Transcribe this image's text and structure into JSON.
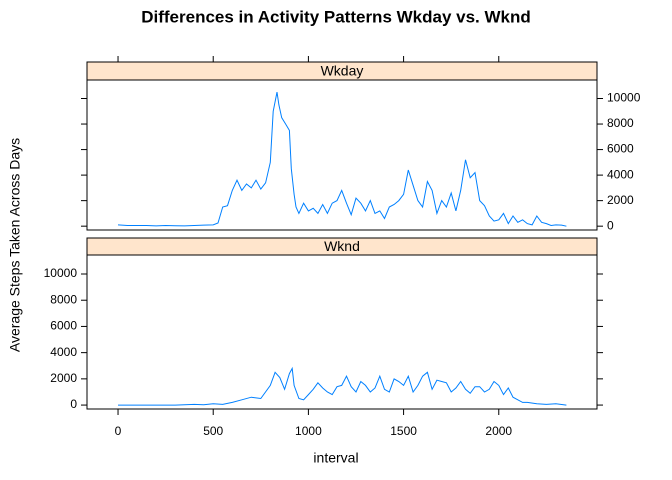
{
  "chart_data": {
    "type": "line",
    "title": "Differences in Activity Patterns Wkday vs. Wknd",
    "x_label": "interval",
    "y_label": "Average Steps Taken Across Days",
    "xlim": [
      -163,
      2516
    ],
    "ylim": [
      -300,
      11450
    ],
    "xticks": [
      0,
      500,
      1000,
      1500,
      2000
    ],
    "yticks": [
      0,
      2000,
      4000,
      6000,
      8000,
      10000
    ],
    "color": "#0080ff",
    "strip_color": "#ffe5cc",
    "panels": [
      {
        "name": "Wkday",
        "x": [
          0,
          50,
          100,
          150,
          200,
          250,
          300,
          350,
          400,
          450,
          500,
          525,
          550,
          575,
          600,
          625,
          650,
          675,
          700,
          725,
          750,
          775,
          800,
          815,
          835,
          845,
          860,
          880,
          900,
          910,
          925,
          935,
          950,
          975,
          1000,
          1025,
          1050,
          1075,
          1100,
          1125,
          1150,
          1175,
          1200,
          1225,
          1250,
          1275,
          1300,
          1325,
          1350,
          1375,
          1400,
          1425,
          1450,
          1475,
          1500,
          1525,
          1550,
          1575,
          1600,
          1625,
          1650,
          1675,
          1700,
          1725,
          1750,
          1775,
          1800,
          1825,
          1850,
          1875,
          1900,
          1925,
          1950,
          1975,
          2000,
          2025,
          2050,
          2075,
          2100,
          2125,
          2150,
          2175,
          2200,
          2225,
          2250,
          2275,
          2300,
          2330,
          2355
        ],
        "values": [
          100,
          50,
          50,
          50,
          20,
          50,
          30,
          20,
          50,
          80,
          100,
          250,
          1500,
          1600,
          2800,
          3600,
          2800,
          3300,
          3000,
          3600,
          2900,
          3400,
          5000,
          9000,
          10500,
          9500,
          8500,
          8000,
          7500,
          4500,
          2500,
          1500,
          1000,
          1800,
          1200,
          1400,
          1000,
          1700,
          1000,
          1800,
          2000,
          2800,
          1800,
          900,
          2200,
          1800,
          1200,
          2000,
          1000,
          1200,
          600,
          1500,
          1700,
          2000,
          2500,
          4400,
          3200,
          2000,
          1500,
          3500,
          2800,
          1000,
          2000,
          1500,
          2600,
          1200,
          2800,
          5200,
          3800,
          4200,
          2000,
          1600,
          800,
          400,
          500,
          1000,
          200,
          800,
          300,
          500,
          200,
          100,
          800,
          300,
          200,
          50,
          100,
          80,
          0
        ]
      },
      {
        "name": "Wknd",
        "x": [
          0,
          100,
          200,
          300,
          400,
          450,
          500,
          550,
          600,
          650,
          700,
          750,
          800,
          825,
          850,
          875,
          900,
          915,
          925,
          950,
          975,
          1000,
          1025,
          1050,
          1075,
          1100,
          1125,
          1150,
          1175,
          1200,
          1225,
          1250,
          1275,
          1300,
          1325,
          1350,
          1375,
          1400,
          1425,
          1450,
          1475,
          1500,
          1525,
          1550,
          1575,
          1600,
          1625,
          1650,
          1675,
          1700,
          1725,
          1750,
          1775,
          1800,
          1825,
          1850,
          1875,
          1900,
          1925,
          1950,
          1975,
          2000,
          2025,
          2050,
          2075,
          2100,
          2125,
          2150,
          2200,
          2250,
          2300,
          2355
        ],
        "values": [
          0,
          0,
          0,
          0,
          50,
          20,
          100,
          50,
          200,
          400,
          600,
          500,
          1500,
          2500,
          2100,
          1200,
          2400,
          2800,
          1500,
          500,
          400,
          800,
          1200,
          1700,
          1300,
          1000,
          800,
          1400,
          1500,
          2200,
          1400,
          1000,
          1800,
          1500,
          1000,
          1300,
          2200,
          1200,
          1000,
          2000,
          1800,
          1500,
          2200,
          1000,
          1500,
          2200,
          2500,
          1200,
          1900,
          1800,
          1700,
          1000,
          1300,
          1800,
          1200,
          900,
          1400,
          1400,
          1000,
          1200,
          1800,
          1500,
          800,
          1300,
          600,
          400,
          200,
          200,
          100,
          50,
          100,
          0
        ]
      }
    ]
  }
}
